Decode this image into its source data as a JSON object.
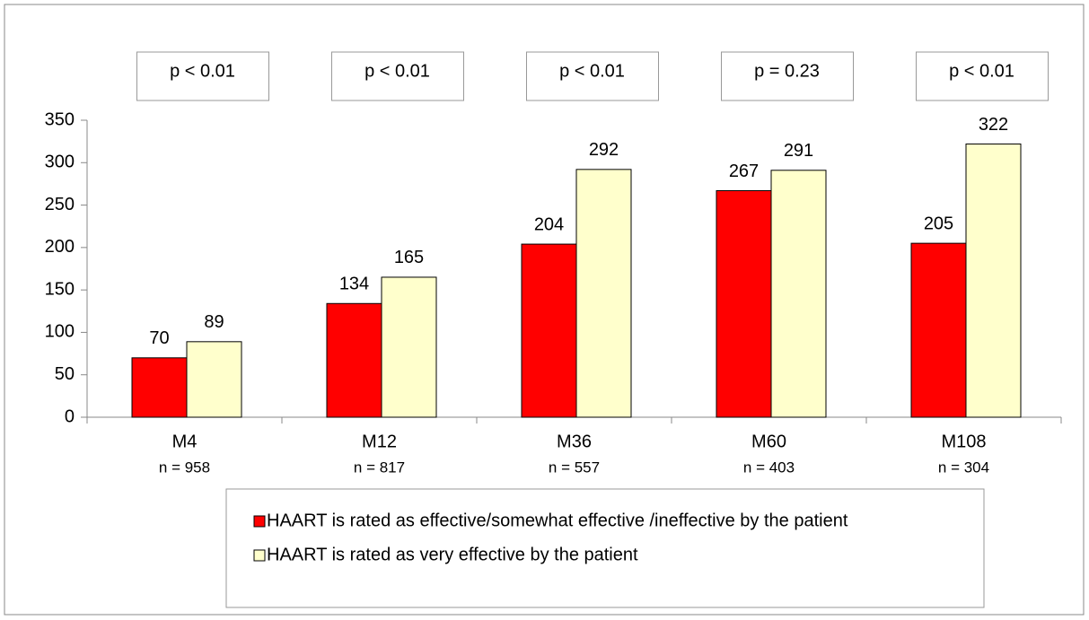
{
  "chart_data": {
    "type": "bar",
    "categories": [
      "M4",
      "M12",
      "M36",
      "M60",
      "M108"
    ],
    "category_notes": [
      "n = 958",
      "n = 817",
      "n = 557",
      "n = 403",
      "n = 304"
    ],
    "annotations": [
      "p < 0.01",
      "p < 0.01",
      "p < 0.01",
      "p = 0.23",
      "p < 0.01"
    ],
    "series": [
      {
        "name": "HAART is rated as effective/somewhat effective /ineffective by the patient",
        "color": "#ff0000",
        "values": [
          70,
          134,
          204,
          267,
          205
        ]
      },
      {
        "name": "HAART is  rated as very effective by the patient",
        "color": "#ffffcc",
        "values": [
          89,
          165,
          292,
          291,
          322
        ]
      }
    ],
    "ylim": [
      0,
      350
    ],
    "yticks": [
      0,
      50,
      100,
      150,
      200,
      250,
      300,
      350
    ],
    "grid": false,
    "legend": "bottom"
  }
}
